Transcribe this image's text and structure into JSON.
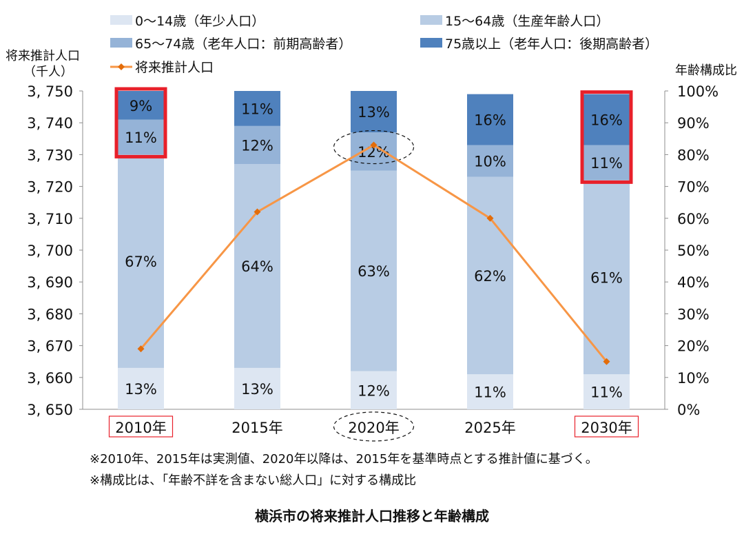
{
  "chart_data": {
    "type": "bar",
    "subtype": "stacked-100-with-line",
    "categories": [
      "2010年",
      "2015年",
      "2020年",
      "2025年",
      "2030年"
    ],
    "series": [
      {
        "name": "0～14歳（年少人口）",
        "values": [
          13,
          13,
          12,
          11,
          11
        ],
        "color": "#dde6f2",
        "labels": [
          "13%",
          "13%",
          "12%",
          "11%",
          "11%"
        ]
      },
      {
        "name": "15～64歳（生産年齢人口）",
        "values": [
          67,
          64,
          63,
          62,
          61
        ],
        "color": "#b8cce4",
        "labels": [
          "67%",
          "64%",
          "63%",
          "62%",
          "61%"
        ]
      },
      {
        "name": "65～74歳（老年人口：前期高齢者）",
        "values": [
          11,
          12,
          12,
          10,
          11
        ],
        "color": "#95b3d7",
        "labels": [
          "11%",
          "12%",
          "12%",
          "10%",
          "11%"
        ]
      },
      {
        "name": "75歳以上（老年人口：後期高齢者）",
        "values": [
          9,
          11,
          13,
          16,
          16
        ],
        "color": "#4f81bd",
        "labels": [
          "9%",
          "11%",
          "13%",
          "16%",
          "16%"
        ]
      }
    ],
    "line_series": {
      "name": "将来推計人口",
      "values": [
        3669,
        3712,
        3733,
        3710,
        3665
      ],
      "color": "#f79646"
    },
    "ylabel_left": [
      "将来推計人口",
      "（千人）"
    ],
    "ylabel_right": "年齢構成比",
    "ylim_left": [
      3650,
      3750
    ],
    "left_ticks": [
      "3, 650",
      "3, 660",
      "3, 670",
      "3, 680",
      "3, 690",
      "3, 700",
      "3, 710",
      "3, 720",
      "3, 730",
      "3, 740",
      "3, 750"
    ],
    "ylim_right": [
      0,
      100
    ],
    "right_ticks": [
      "0%",
      "10%",
      "20%",
      "30%",
      "40%",
      "50%",
      "60%",
      "70%",
      "80%",
      "90%",
      "100%"
    ],
    "legend_position": "top",
    "highlighted_categories": [
      "2010年",
      "2030年"
    ],
    "circled_category": "2020年",
    "highlight_color": "#e8202a",
    "grid": false
  },
  "notes": [
    "※2010年、2015年は実測値、2020年以降は、2015年を基準時点とする推計値に基づく。",
    "※構成比は、「年齢不詳を含まない総人口」に対する構成比"
  ],
  "caption": "横浜市の将来推計人口推移と年齢構成"
}
